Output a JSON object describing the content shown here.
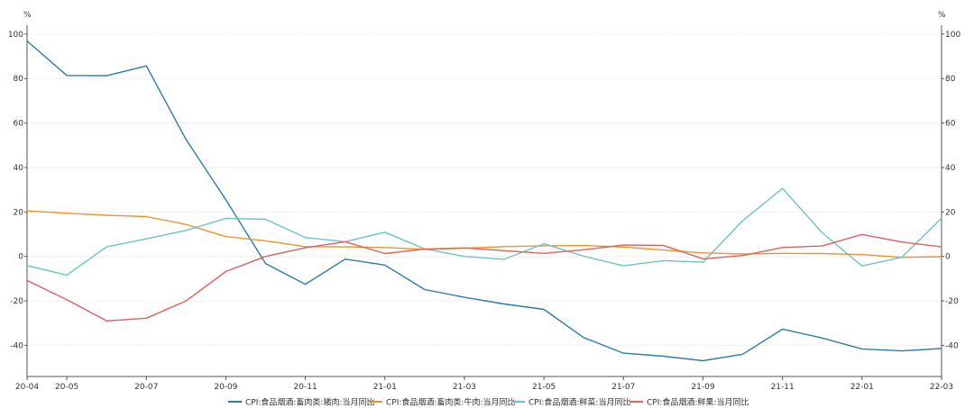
{
  "chart_data": {
    "type": "line",
    "y_unit_left": "%",
    "y_unit_right": "%",
    "ylim": [
      -54,
      104
    ],
    "y_ticks": [
      -40,
      -20,
      0,
      20,
      40,
      60,
      80,
      100
    ],
    "x": [
      "20-04",
      "20-05",
      "20-06",
      "20-07",
      "20-08",
      "20-09",
      "20-10",
      "20-11",
      "20-12",
      "21-01",
      "21-02",
      "21-03",
      "21-04",
      "21-05",
      "21-06",
      "21-07",
      "21-08",
      "21-09",
      "21-10",
      "21-11",
      "21-12",
      "22-01",
      "22-02",
      "22-03"
    ],
    "x_tick_labels": [
      "20-04",
      "20-05",
      "20-07",
      "20-09",
      "20-11",
      "21-01",
      "21-03",
      "21-05",
      "21-07",
      "21-09",
      "21-11",
      "22-01",
      "22-03"
    ],
    "grid": true,
    "legend_position": "bottom",
    "series": [
      {
        "name": "CPI:食品烟酒:畜肉类:猪肉:当月同比",
        "color": "#2e7ca6",
        "values": [
          96.9,
          81.4,
          81.3,
          85.7,
          52.6,
          25.5,
          -3.2,
          -12.5,
          -1.2,
          -3.9,
          -14.9,
          -18.4,
          -21.4,
          -23.8,
          -36.5,
          -43.5,
          -44.9,
          -46.9,
          -44.0,
          -32.7,
          -36.7,
          -41.6,
          -42.5,
          -41.4
        ]
      },
      {
        "name": "CPI:食品烟酒:畜肉类:牛肉:当月同比",
        "color": "#f0912b",
        "values": [
          20.5,
          19.4,
          18.5,
          17.9,
          14.4,
          8.9,
          7.0,
          4.4,
          4.3,
          4.0,
          3.2,
          3.7,
          4.4,
          4.8,
          4.9,
          4.2,
          2.9,
          1.6,
          1.1,
          1.4,
          1.3,
          0.8,
          -0.4,
          -0.1
        ]
      },
      {
        "name": "CPI:食品烟酒:鲜菜:当月同比",
        "color": "#6cc3c6",
        "values": [
          -4.1,
          -8.4,
          4.3,
          7.9,
          11.7,
          17.1,
          16.7,
          8.5,
          6.6,
          10.9,
          3.4,
          0.0,
          -1.3,
          5.7,
          0.1,
          -4.2,
          -1.9,
          -2.6,
          16.1,
          30.6,
          10.6,
          -4.3,
          -0.4,
          17.2
        ]
      },
      {
        "name": "CPI:食品烟酒:鲜果:当月同比",
        "color": "#e0605a",
        "values": [
          -10.8,
          -19.5,
          -29.0,
          -27.8,
          -20.0,
          -6.8,
          0.0,
          3.9,
          6.6,
          1.3,
          3.3,
          3.8,
          2.6,
          1.4,
          3.0,
          5.1,
          5.0,
          -1.1,
          0.4,
          4.0,
          4.7,
          9.9,
          6.5,
          4.3
        ]
      }
    ]
  }
}
